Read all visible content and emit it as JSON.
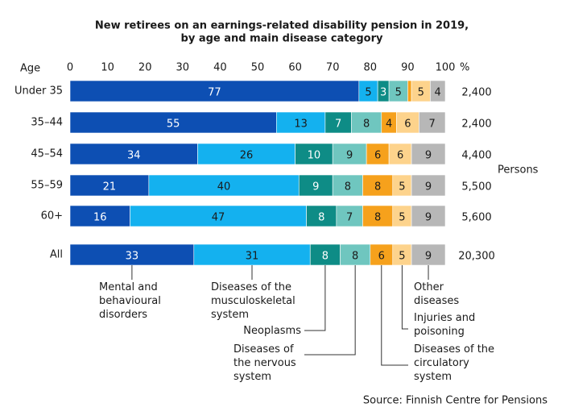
{
  "chart_data": {
    "type": "stacked-bar-horizontal",
    "title": "New retirees on an earnings-related disability pension in 2019,",
    "subtitle": "by age and main disease category",
    "y_label": "Age",
    "x_unit": "%",
    "categories": [
      "Under 35",
      "35–44",
      "45–54",
      "55–59",
      "60+",
      "All"
    ],
    "xlim": [
      0,
      100
    ],
    "xticks": [
      0,
      10,
      20,
      30,
      40,
      50,
      60,
      70,
      80,
      90,
      100
    ],
    "series": [
      {
        "name": "Mental and\nbehavioural\ndisorders",
        "color": "#0d4fb3",
        "label_color": "#ffffff",
        "values": [
          77,
          55,
          34,
          21,
          16,
          33
        ]
      },
      {
        "name": "Diseases of the\nmusculoskeletal\nsystem",
        "color": "#14b1ef",
        "label_color": "#1a1a1a",
        "values": [
          5,
          13,
          26,
          40,
          47,
          31
        ]
      },
      {
        "name": "Neoplasms",
        "color": "#0e8c86",
        "label_color": "#ffffff",
        "values": [
          3,
          7,
          10,
          9,
          8,
          8
        ]
      },
      {
        "name": "Diseases of\nthe nervous\nsystem",
        "color": "#6fc6bf",
        "label_color": "#1a1a1a",
        "values": [
          5,
          8,
          9,
          8,
          7,
          8
        ]
      },
      {
        "name": "Diseases of the\ncirculatory\nsystem",
        "color": "#f6a11c",
        "label_color": "#1a1a1a",
        "values": [
          1,
          4,
          6,
          8,
          8,
          6
        ]
      },
      {
        "name": "Injuries and\npoisoning",
        "color": "#fdd38c",
        "label_color": "#1a1a1a",
        "values": [
          5,
          6,
          6,
          5,
          5,
          5
        ]
      },
      {
        "name": "Other\ndiseases",
        "color": "#b7b7b7",
        "label_color": "#1a1a1a",
        "values": [
          4,
          7,
          9,
          9,
          9,
          9
        ]
      }
    ],
    "row_totals_label": "Persons",
    "row_totals": [
      "2,400",
      "2,400",
      "4,400",
      "5,500",
      "5,600",
      "20,300"
    ],
    "source": "Source: Finnish Centre for Pensions"
  }
}
